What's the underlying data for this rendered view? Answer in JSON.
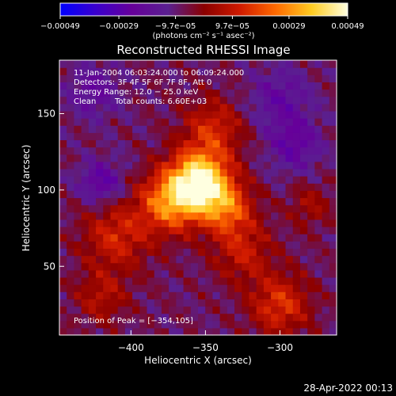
{
  "chart_data": {
    "type": "heatmap",
    "title": "Reconstructed RHESSI Image",
    "xlabel": "Heliocentric X (arcsec)",
    "ylabel": "Heliocentric Y (arcsec)",
    "xlim": [
      -448,
      -262
    ],
    "ylim": [
      5,
      185
    ],
    "x_ticks": [
      -400,
      -350,
      -300
    ],
    "y_ticks": [
      50,
      100,
      150
    ],
    "x_tick_labels": [
      "−400",
      "−350",
      "−300"
    ],
    "y_tick_labels": [
      "50",
      "100",
      "150"
    ],
    "grid": false,
    "colorbar": {
      "orientation": "horizontal",
      "position": "top",
      "range": [
        -0.00049,
        0.00049
      ],
      "ticks": [
        -0.00049,
        -0.00029,
        -9.7e-05,
        9.7e-05,
        0.00029,
        0.00049
      ],
      "tick_labels": [
        "−0.00049",
        "−0.00029",
        "−9.7e−05",
        "9.7e−05",
        "0.00029",
        "0.00049"
      ],
      "unit_label": "(photons cm⁻² s⁻¹ asec⁻²)",
      "colormap": [
        "#0000ff",
        "#3a00cc",
        "#660099",
        "#5a2090",
        "#8a0000",
        "#d01a00",
        "#ff6a00",
        "#ffcc22",
        "#ffffe0"
      ]
    },
    "annotations": {
      "time_range": "11-Jan-2004 06:03:24.000 to 06:09:24.000",
      "detectors": "Detectors: 3F 4F 5F 6F 7F 8F, Att 0",
      "energy_range": "Energy Range: 12.0 − 25.0 keV",
      "clean": "Clean",
      "total_counts": "Total counts: 6.60E+03",
      "peak": "Position of Peak = [−354,105]"
    },
    "peak": {
      "x": -354,
      "y": 105
    },
    "sources": [
      {
        "x": -354,
        "y": 105,
        "amplitude": 1.0,
        "sigma": 14
      },
      {
        "x": -375,
        "y": 92,
        "amplitude": 0.55,
        "sigma": 14
      },
      {
        "x": -335,
        "y": 88,
        "amplitude": 0.45,
        "sigma": 12
      },
      {
        "x": -410,
        "y": 70,
        "amplitude": 0.35,
        "sigma": 16
      },
      {
        "x": -325,
        "y": 60,
        "amplitude": 0.3,
        "sigma": 14
      },
      {
        "x": -300,
        "y": 25,
        "amplitude": 0.4,
        "sigma": 14
      },
      {
        "x": -420,
        "y": 30,
        "amplitude": 0.25,
        "sigma": 12
      },
      {
        "x": -345,
        "y": 140,
        "amplitude": 0.35,
        "sigma": 14
      },
      {
        "x": -280,
        "y": 90,
        "amplitude": 0.2,
        "sigma": 10
      },
      {
        "x": -420,
        "y": 105,
        "amplitude": -0.35,
        "sigma": 10
      },
      {
        "x": -290,
        "y": 130,
        "amplitude": -0.3,
        "sigma": 12
      },
      {
        "x": -300,
        "y": 160,
        "amplitude": -0.25,
        "sigma": 14
      },
      {
        "x": -425,
        "y": 165,
        "amplitude": -0.25,
        "sigma": 12
      }
    ]
  },
  "footer": {
    "timestamp": "28-Apr-2022 00:13"
  }
}
